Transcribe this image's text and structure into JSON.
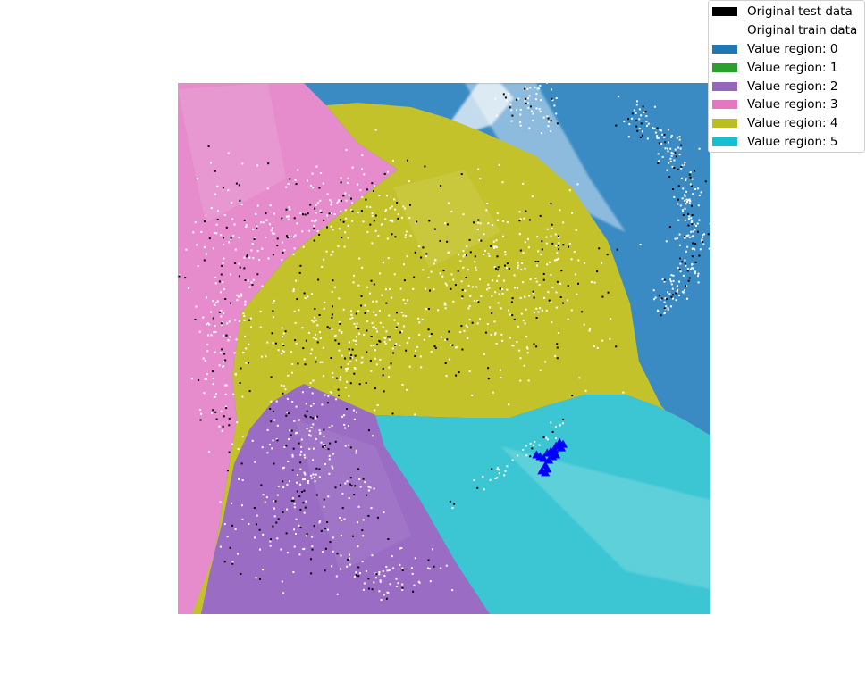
{
  "colors": {
    "test_data": "#000000",
    "train_data": "#ffffff",
    "marker": "#0000ff"
  },
  "chart_data": {
    "type": "scatter",
    "title": "",
    "xlabel": "",
    "ylabel": "",
    "axes_visible": false,
    "grid": false,
    "legend_placement": "top-right outside",
    "background": "decision-region map",
    "legend": [
      {
        "label": "Original test data",
        "color": "#000000"
      },
      {
        "label": "Original train data",
        "color": "#ffffff"
      },
      {
        "label": "Value region: 0",
        "color": "#1f77b4"
      },
      {
        "label": "Value region: 1",
        "color": "#2ca02c"
      },
      {
        "label": "Value region: 2",
        "color": "#9467bd"
      },
      {
        "label": "Value region: 3",
        "color": "#e377c2"
      },
      {
        "label": "Value region: 4",
        "color": "#bcbd22"
      },
      {
        "label": "Value region: 5",
        "color": "#17becf"
      }
    ],
    "regions": [
      {
        "name": "Value region: 3",
        "value": 3,
        "color": "#e377c2",
        "location": "left edge"
      },
      {
        "name": "Value region: 0",
        "value": 0,
        "color": "#1f77b4",
        "location": "upper right"
      },
      {
        "name": "Value region: 4",
        "value": 4,
        "color": "#bcbd22",
        "location": "center"
      },
      {
        "name": "Value region: 2",
        "value": 2,
        "color": "#9467bd",
        "location": "lower left"
      },
      {
        "name": "Value region: 5",
        "value": 5,
        "color": "#17becf",
        "location": "lower right"
      }
    ],
    "highlight_marker": "blue triangles",
    "highlight_points": [
      {
        "x": 0.54,
        "y": -0.61
      },
      {
        "x": 0.56,
        "y": -0.62
      },
      {
        "x": 0.58,
        "y": -0.59
      },
      {
        "x": 0.6,
        "y": -0.58
      },
      {
        "x": 0.62,
        "y": -0.57
      },
      {
        "x": 0.64,
        "y": -0.55
      },
      {
        "x": 0.65,
        "y": -0.53
      },
      {
        "x": 0.66,
        "y": -0.56
      },
      {
        "x": 0.63,
        "y": -0.6
      },
      {
        "x": 0.59,
        "y": -0.63
      },
      {
        "x": 0.57,
        "y": -0.66
      },
      {
        "x": 0.55,
        "y": -0.69
      },
      {
        "x": 0.57,
        "y": -0.7
      },
      {
        "x": 0.58,
        "y": -0.68
      },
      {
        "x": 0.61,
        "y": -0.61
      },
      {
        "x": 0.52,
        "y": -0.6
      },
      {
        "x": 0.63,
        "y": -0.55
      },
      {
        "x": 0.67,
        "y": -0.54
      }
    ]
  }
}
